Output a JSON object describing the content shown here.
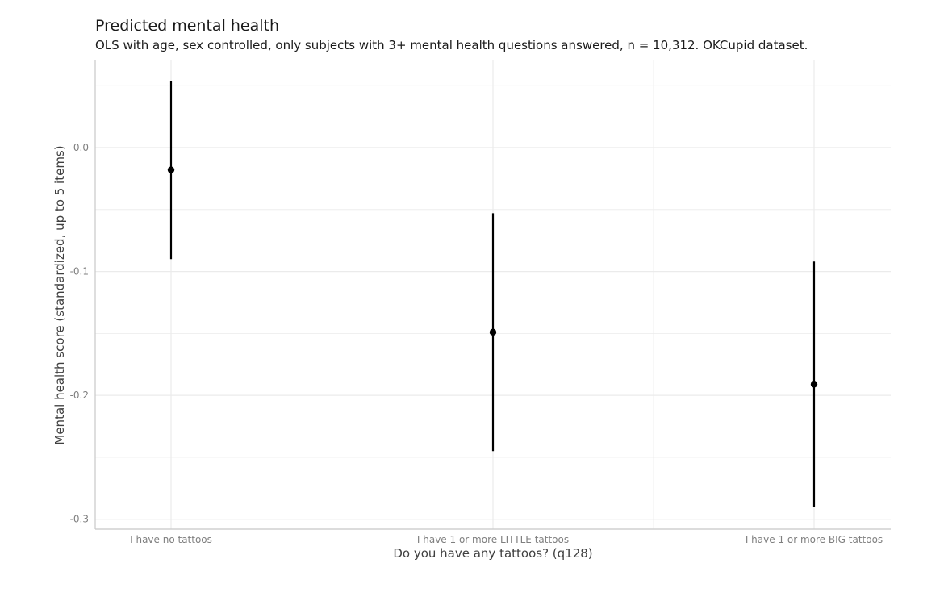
{
  "chart_data": {
    "type": "scatter",
    "title": "Predicted mental health",
    "subtitle": "OLS with age, sex controlled, only subjects with 3+ mental health questions answered, n = 10,312. OKCupid dataset.",
    "xlabel": "Do you have any tattoos? (q128)",
    "ylabel": "Mental health score (standardized, up to 5 items)",
    "categories": [
      "I have no tattoos",
      "I have 1 or more LITTLE tattoos",
      "I have 1 or more BIG tattoos"
    ],
    "values": [
      -0.018,
      -0.149,
      -0.191
    ],
    "lower": [
      -0.09,
      -0.245,
      -0.29
    ],
    "upper": [
      0.054,
      -0.053,
      -0.092
    ],
    "ylim": [
      -0.308,
      0.071
    ],
    "yticks": [
      0.0,
      -0.1,
      -0.2,
      -0.3
    ],
    "ytick_labels": [
      "0.0",
      "-0.1",
      "-0.2",
      "-0.3"
    ],
    "grid": true,
    "legend": "none",
    "colors": {
      "point": "#000000",
      "grid": "#ebebeb",
      "axis": "#c8c8c8",
      "text": "#7f7f7f"
    }
  }
}
